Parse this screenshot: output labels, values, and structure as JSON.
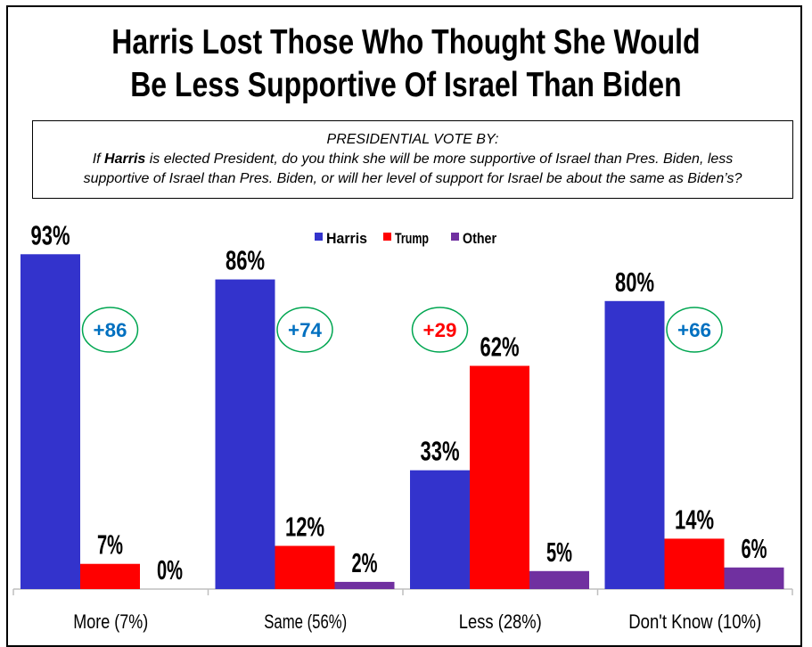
{
  "title_lines": [
    "Harris Lost Those Who Thought She Would",
    "Be Less Supportive Of Israel Than Biden"
  ],
  "question": {
    "header": "PRESIDENTIAL VOTE BY:",
    "line1_pre": "If ",
    "line1_bold": "Harris",
    "line1_post": " is elected President, do you think she will be more supportive of Israel than Pres. Biden, less",
    "line2": "supportive of Israel than Pres. Biden, or will her level of support for Israel be about the same as Biden’s?"
  },
  "chart_data": {
    "type": "bar",
    "categories": [
      "More (7%)",
      "Same (56%)",
      "Less (28%)",
      "Don't Know (10%)"
    ],
    "series": [
      {
        "name": "Harris",
        "values": [
          93,
          86,
          33,
          80
        ],
        "color": "#3333cc"
      },
      {
        "name": "Trump",
        "values": [
          7,
          12,
          62,
          14
        ],
        "color": "#ff0000"
      },
      {
        "name": "Other",
        "values": [
          0,
          2,
          5,
          6
        ],
        "color": "#7030a0"
      }
    ],
    "data_labels": [
      [
        "93%",
        "7%",
        "0%"
      ],
      [
        "86%",
        "12%",
        "2%"
      ],
      [
        "33%",
        "62%",
        "5%"
      ],
      [
        "80%",
        "14%",
        "6%"
      ]
    ],
    "leads": [
      {
        "text": "+86",
        "color": "#0070c0"
      },
      {
        "text": "+74",
        "color": "#0070c0"
      },
      {
        "text": "+29",
        "color": "#ff0000"
      },
      {
        "text": "+66",
        "color": "#0070c0"
      }
    ],
    "lead_circle_color": "#00a651",
    "ylim": [
      0,
      100
    ],
    "grid": false,
    "legend_position": "top-center"
  }
}
